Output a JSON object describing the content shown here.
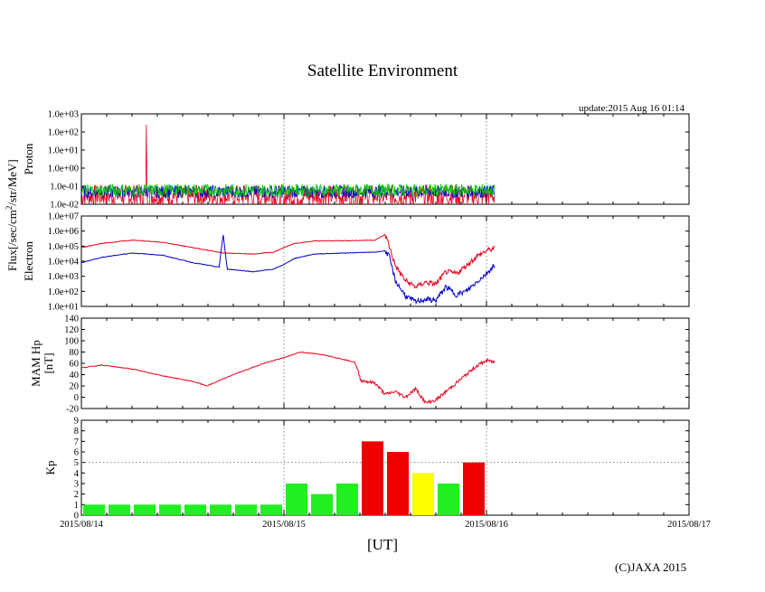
{
  "page": {
    "title": "Satellite Environment",
    "update": "update:2015 Aug 16 01:14",
    "x_axis_label": "[UT]",
    "copyright": "(C)JAXA 2015",
    "shared_flux_label": "Flux[/sec/cm",
    "shared_flux_sup": "2",
    "shared_flux_tail": "/str/MeV]"
  },
  "colors": {
    "red": "#e8001c",
    "blue": "#0000cc",
    "green": "#00c800",
    "kp_green": "#22ee22",
    "kp_yellow": "#ffff00",
    "kp_red": "#ee0000",
    "grid": "#888888"
  },
  "chart_data": [
    {
      "type": "line",
      "name": "proton",
      "ylabel": "Proton",
      "yscale": "log",
      "ylim": [
        0.01,
        1000
      ],
      "yticks": [
        "1.0e-02",
        "1.0e-01",
        "1.0e+00",
        "1.0e+01",
        "1.0e+02",
        "1.0e+03"
      ],
      "xlim": [
        0,
        3
      ],
      "xtick_labels": [
        "2015/08/14",
        "2015/08/15",
        "2015/08/16",
        "2015/08/17"
      ],
      "data_end_day": 2.04,
      "series": [
        {
          "name": "proton-high",
          "color": "red",
          "baseline": 0.03,
          "spike": {
            "day": 0.32,
            "value": 250
          }
        },
        {
          "name": "proton-mid",
          "color": "blue",
          "baseline": 0.05
        },
        {
          "name": "proton-low",
          "color": "green",
          "baseline": 0.06
        }
      ]
    },
    {
      "type": "line",
      "name": "electron",
      "ylabel": "Electron",
      "yscale": "log",
      "ylim": [
        10,
        10000000
      ],
      "yticks": [
        "1.0e+01",
        "1.0e+02",
        "1.0e+03",
        "1.0e+04",
        "1.0e+05",
        "1.0e+06",
        "1.0e+07"
      ],
      "series": [
        {
          "name": "electron-low-energy",
          "color": "red",
          "x": [
            0,
            0.1,
            0.25,
            0.4,
            0.55,
            0.7,
            0.85,
            0.95,
            1.0,
            1.05,
            1.15,
            1.3,
            1.45,
            1.5,
            1.52,
            1.55,
            1.6,
            1.65,
            1.7,
            1.75,
            1.8,
            1.85,
            1.9,
            1.95,
            2.0,
            2.04
          ],
          "y": [
            80000,
            150000,
            250000,
            180000,
            80000,
            35000,
            30000,
            40000,
            80000,
            150000,
            220000,
            230000,
            250000,
            600000,
            100000,
            5000,
            500,
            200,
            400,
            300,
            2000,
            1500,
            5000,
            20000,
            50000,
            70000
          ]
        },
        {
          "name": "electron-high-energy",
          "color": "blue",
          "x": [
            0,
            0.1,
            0.25,
            0.4,
            0.55,
            0.68,
            0.7,
            0.72,
            0.85,
            0.95,
            1.0,
            1.05,
            1.15,
            1.3,
            1.45,
            1.5,
            1.52,
            1.55,
            1.6,
            1.65,
            1.7,
            1.75,
            1.8,
            1.85,
            1.9,
            1.95,
            2.0,
            2.04
          ],
          "y": [
            8000,
            18000,
            35000,
            25000,
            8000,
            4000,
            600000,
            3000,
            2000,
            3000,
            6000,
            15000,
            30000,
            35000,
            40000,
            50000,
            20000,
            500,
            50,
            20,
            30,
            25,
            200,
            60,
            100,
            400,
            1500,
            6000
          ]
        }
      ]
    },
    {
      "type": "line",
      "name": "mam-hp",
      "ylabel": "MAM Hp",
      "ylabel2": "[nT]",
      "yscale": "linear",
      "ylim": [
        -20,
        140
      ],
      "yticks": [
        "-20",
        "0",
        "20",
        "40",
        "60",
        "80",
        "100",
        "120",
        "140"
      ],
      "series": [
        {
          "name": "hp",
          "color": "red",
          "x": [
            0,
            0.1,
            0.25,
            0.4,
            0.55,
            0.62,
            0.75,
            0.9,
            1.0,
            1.08,
            1.2,
            1.35,
            1.38,
            1.45,
            1.5,
            1.55,
            1.6,
            1.65,
            1.7,
            1.75,
            1.8,
            1.85,
            1.9,
            1.95,
            2.0,
            2.04
          ],
          "y": [
            52,
            57,
            50,
            38,
            28,
            20,
            40,
            60,
            70,
            80,
            75,
            62,
            30,
            25,
            5,
            10,
            0,
            15,
            -10,
            -5,
            10,
            25,
            40,
            55,
            65,
            62
          ]
        }
      ]
    },
    {
      "type": "bar",
      "name": "kp",
      "ylabel": "Kp",
      "ylim": [
        0,
        9
      ],
      "yticks": [
        "0",
        "1",
        "2",
        "3",
        "4",
        "5",
        "6",
        "7",
        "8",
        "9"
      ],
      "values": [
        1,
        1,
        1,
        1,
        1,
        1,
        1,
        1,
        3,
        2,
        3,
        7,
        6,
        4,
        3,
        5
      ],
      "colors": [
        "kp_green",
        "kp_green",
        "kp_green",
        "kp_green",
        "kp_green",
        "kp_green",
        "kp_green",
        "kp_green",
        "kp_green",
        "kp_green",
        "kp_green",
        "kp_red",
        "kp_red",
        "kp_yellow",
        "kp_green",
        "kp_red"
      ],
      "bin_hours": 3
    }
  ]
}
